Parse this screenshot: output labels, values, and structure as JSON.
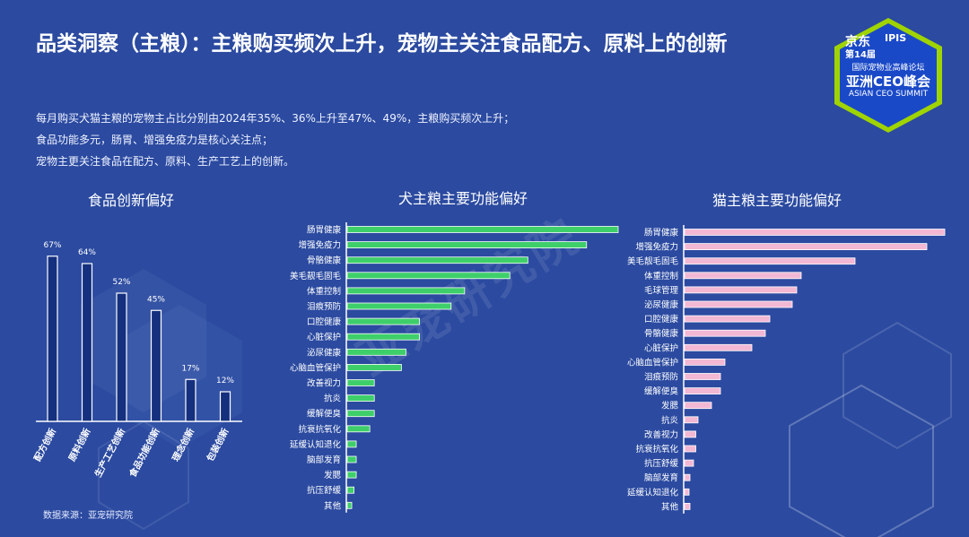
{
  "title": "品类洞察（主粮）：主粮购买频次上升，宠物主关注食品配方、原料上的创新",
  "summary": [
    "每月购买犬猫主粮的宠物主占比分别由2024年35%、36%上升至47%、49%，主粮购买频次上升；",
    "食品功能多元，肠胃、增强免疫力是核心关注点；",
    "宠物主更关注食品在配方、原料、生产工艺上的创新。"
  ],
  "logo": {
    "line1": "京东",
    "line1b": "IPIS",
    "edition": "第14届",
    "line2": "国际宠物业高峰论坛",
    "line3": "亚洲CEO峰会",
    "line4": "ASIAN CEO SUMMIT"
  },
  "source": "数据来源：亚宠研究院",
  "watermark": "亚宠研究院",
  "colors": {
    "background": "#2b4aa0",
    "bar_dark": "#14307e",
    "bar_green": "#3ecf6a",
    "bar_pink": "#f2b8d4",
    "logo_green": "#9fd400",
    "logo_blue": "#1a49c8"
  },
  "chart_data": [
    {
      "type": "bar",
      "title": "食品创新偏好",
      "categories": [
        "配方创新",
        "原料创新",
        "生产工艺创新",
        "食品功能创新",
        "理念创新",
        "包装创新"
      ],
      "values": [
        67,
        64,
        52,
        45,
        17,
        12
      ],
      "value_labels": [
        "67%",
        "64%",
        "52%",
        "45%",
        "17%",
        "12%"
      ],
      "ylim": [
        0,
        80
      ]
    },
    {
      "type": "bar",
      "orientation": "horizontal",
      "title": "犬主粮主要功能偏好",
      "categories": [
        "肠胃健康",
        "增强免疫力",
        "骨骼健康",
        "美毛靓毛固毛",
        "体重控制",
        "泪痕预防",
        "口腔健康",
        "心脏保护",
        "泌尿健康",
        "心脑血管保护",
        "改善视力",
        "抗炎",
        "缓解便臭",
        "抗衰抗氧化",
        "延缓认知退化",
        "脑部发育",
        "发腮",
        "抗压舒缓",
        "其他"
      ],
      "values": [
        60,
        53,
        40,
        36,
        26,
        23,
        16,
        16,
        13,
        12,
        6,
        6,
        6,
        5,
        2,
        2,
        2,
        1.5,
        1
      ],
      "xlim": [
        0,
        60
      ]
    },
    {
      "type": "bar",
      "orientation": "horizontal",
      "title": "猫主粮主要功能偏好",
      "categories": [
        "肠胃健康",
        "增强免疫力",
        "美毛靓毛固毛",
        "体重控制",
        "毛球管理",
        "泌尿健康",
        "口腔健康",
        "骨骼健康",
        "心脏保护",
        "心脑血管保护",
        "泪痕预防",
        "缓解便臭",
        "发腮",
        "抗炎",
        "改善视力",
        "抗衰抗氧化",
        "抗压舒缓",
        "脑部发育",
        "延缓认知退化",
        "其他"
      ],
      "values": [
        58,
        54,
        38,
        26,
        25,
        24,
        19,
        18,
        15,
        9,
        8,
        8,
        6,
        3,
        2.5,
        2.5,
        2,
        1.2,
        1,
        1.2
      ],
      "xlim": [
        0,
        60
      ]
    }
  ]
}
